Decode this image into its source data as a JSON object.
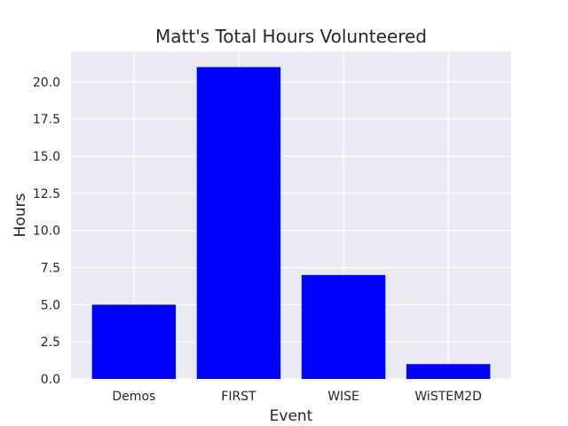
{
  "chart_data": {
    "type": "bar",
    "title": "Matt's Total Hours Volunteered",
    "xlabel": "Event",
    "ylabel": "Hours",
    "categories": [
      "Demos",
      "FIRST",
      "WISE",
      "WiSTEM2D"
    ],
    "values": [
      5,
      21,
      7,
      1
    ],
    "ylim": [
      0,
      22.05
    ],
    "yticks": [
      0,
      2.5,
      5,
      7.5,
      10,
      12.5,
      15,
      17.5,
      20
    ],
    "ytick_labels": [
      "0.0",
      "2.5",
      "5.0",
      "7.5",
      "10.0",
      "12.5",
      "15.0",
      "17.5",
      "20.0"
    ],
    "grid": true,
    "legend": "none",
    "bar_color": "#0000ff",
    "plot_background": "#eaeaf2",
    "grid_color": "#ffffff"
  }
}
